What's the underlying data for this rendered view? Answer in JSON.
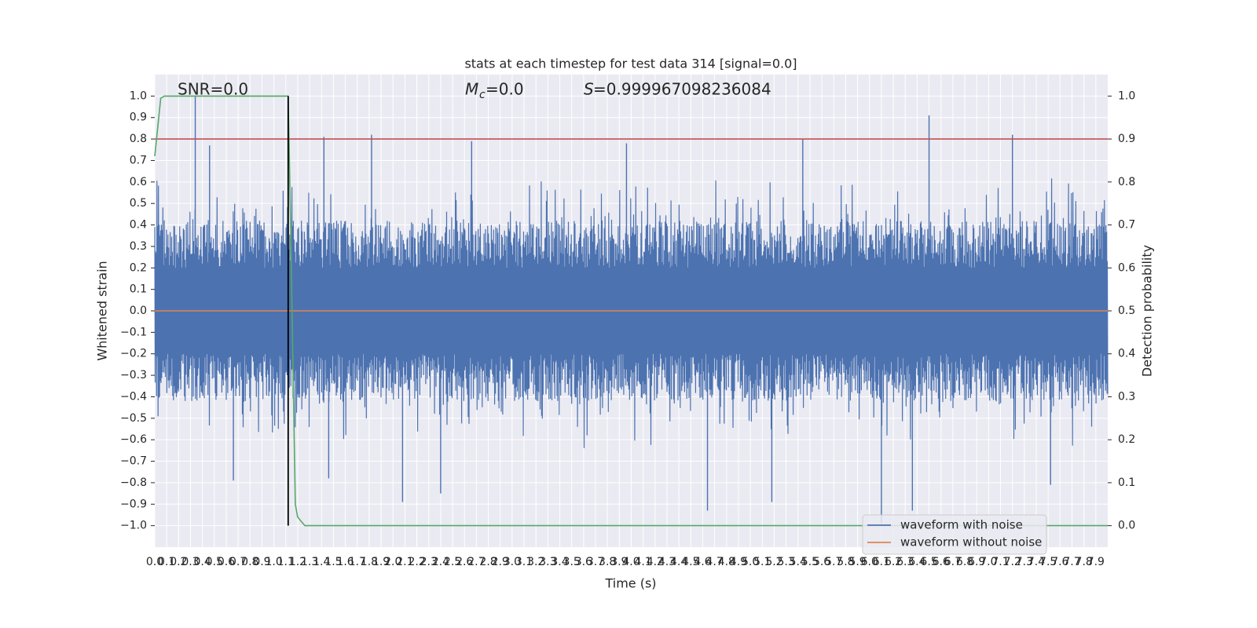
{
  "chart_data": {
    "type": "line",
    "title": "stats at each timestep for test data 314 [signal=0.0]",
    "xlabel": "Time (s)",
    "ylabel_left": "Whitened strain",
    "ylabel_right": "Detection probability",
    "xlim": [
      0.0,
      8.0
    ],
    "ylim_left": [
      -1.1,
      1.1
    ],
    "ylim_right": [
      -0.05,
      1.05
    ],
    "x_tick_labels": [
      "0.0",
      "0.1",
      "0.2",
      "0.3",
      "0.4",
      "0.5",
      "0.6",
      "0.7",
      "0.8",
      "0.9",
      "1.0",
      "1.1",
      "1.2",
      "1.3",
      "1.4",
      "1.5",
      "1.6",
      "1.7",
      "1.8",
      "1.9",
      "2.0",
      "2.1",
      "2.2",
      "2.3",
      "2.4",
      "2.5",
      "2.6",
      "2.7",
      "2.8",
      "2.9",
      "3.0",
      "3.1",
      "3.2",
      "3.3",
      "3.4",
      "3.5",
      "3.6",
      "3.7",
      "3.8",
      "3.9",
      "4.0",
      "4.1",
      "4.2",
      "4.3",
      "4.4",
      "4.5",
      "4.6",
      "4.7",
      "4.8",
      "4.9",
      "5.0",
      "5.1",
      "5.2",
      "5.3",
      "5.4",
      "5.5",
      "5.6",
      "5.7",
      "5.8",
      "5.9",
      "6.0",
      "6.1",
      "6.2",
      "6.3",
      "6.4",
      "6.5",
      "6.6",
      "6.7",
      "6.8",
      "6.9",
      "7.0",
      "7.1",
      "7.2",
      "7.3",
      "7.4",
      "7.5",
      "7.6",
      "7.7",
      "7.8",
      "7.9"
    ],
    "y_tick_labels_left": [
      "−1.0",
      "−0.9",
      "−0.8",
      "−0.7",
      "−0.6",
      "−0.5",
      "−0.4",
      "−0.3",
      "−0.2",
      "−0.1",
      "0.0",
      "0.1",
      "0.2",
      "0.3",
      "0.4",
      "0.5",
      "0.6",
      "0.7",
      "0.8",
      "0.9",
      "1.0"
    ],
    "y_tick_labels_right": [
      "0.0",
      "0.1",
      "0.2",
      "0.3",
      "0.4",
      "0.5",
      "0.6",
      "0.7",
      "0.8",
      "0.9",
      "1.0"
    ],
    "annotations": {
      "snr": "SNR=0.0",
      "mc": "=0.0",
      "s": "=0.999967098236084"
    },
    "grid": true,
    "legend": {
      "placement": "lower right",
      "entries": [
        {
          "label": "waveform with noise",
          "color": "#4c72b0"
        },
        {
          "label": "waveform without noise",
          "color": "#dd8452"
        }
      ]
    },
    "series": [
      {
        "name": "waveform with noise",
        "color": "#4c72b0",
        "axis": "left",
        "peaks": [
          {
            "x": 0.34,
            "y": 1.0
          },
          {
            "x": 0.46,
            "y": 0.77
          },
          {
            "x": 1.12,
            "y": 0.95
          },
          {
            "x": 1.42,
            "y": 0.81
          },
          {
            "x": 1.82,
            "y": 0.82
          },
          {
            "x": 2.66,
            "y": 0.79
          },
          {
            "x": 3.96,
            "y": 0.78
          },
          {
            "x": 5.44,
            "y": 0.8
          },
          {
            "x": 6.5,
            "y": 0.91
          },
          {
            "x": 7.2,
            "y": 0.82
          }
        ],
        "troughs": [
          {
            "x": 0.66,
            "y": -0.79
          },
          {
            "x": 1.46,
            "y": -0.78
          },
          {
            "x": 2.08,
            "y": -0.89
          },
          {
            "x": 2.4,
            "y": -0.85
          },
          {
            "x": 4.64,
            "y": -0.93
          },
          {
            "x": 5.18,
            "y": -0.89
          },
          {
            "x": 6.1,
            "y": -0.99
          },
          {
            "x": 6.36,
            "y": -0.93
          },
          {
            "x": 7.52,
            "y": -0.81
          }
        ]
      },
      {
        "name": "waveform without noise",
        "color": "#dd8452",
        "axis": "left",
        "x": [
          0.0,
          8.0
        ],
        "y": [
          0.0,
          0.0
        ]
      },
      {
        "color": "#55a868",
        "axis": "right",
        "x": [
          0.0,
          0.05,
          0.08,
          0.15,
          1.12,
          1.14,
          1.18,
          1.2,
          1.26,
          8.0
        ],
        "y": [
          0.86,
          0.995,
          1.0,
          1.0,
          1.0,
          0.7,
          0.05,
          0.02,
          0.0,
          0.0
        ]
      }
    ],
    "threshold_line": {
      "axis": "right",
      "y": 0.9,
      "color": "#c44e52"
    },
    "marker_line": {
      "x": 1.12,
      "y_range_right": [
        0.0,
        1.0
      ],
      "color": "#000000"
    }
  }
}
